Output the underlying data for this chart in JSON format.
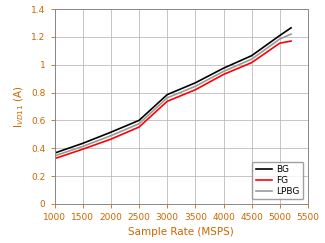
{
  "title": "",
  "xlabel": "Sample Rate (MSPS)",
  "ylabel": "I$_{VD11}$ (A)",
  "xlim": [
    1000,
    5500
  ],
  "ylim": [
    0,
    1.4
  ],
  "xticks": [
    1000,
    1500,
    2000,
    2500,
    3000,
    3500,
    4000,
    4500,
    5000,
    5500
  ],
  "yticks": [
    0,
    0.2,
    0.4,
    0.6,
    0.8,
    1.0,
    1.2,
    1.4
  ],
  "lines": {
    "BG": {
      "x": [
        1000,
        1500,
        2000,
        2500,
        3000,
        3500,
        4000,
        4500,
        5000,
        5200
      ],
      "y": [
        0.365,
        0.435,
        0.515,
        0.6,
        0.785,
        0.87,
        0.975,
        1.065,
        1.21,
        1.265
      ],
      "color": "#000000",
      "linewidth": 1.2
    },
    "FG": {
      "x": [
        1000,
        1500,
        2000,
        2500,
        3000,
        3500,
        4000,
        4500,
        5000,
        5200
      ],
      "y": [
        0.325,
        0.393,
        0.465,
        0.552,
        0.737,
        0.82,
        0.93,
        1.015,
        1.155,
        1.17
      ],
      "color": "#ff0000",
      "linewidth": 1.2
    },
    "LPBG": {
      "x": [
        1000,
        1500,
        2000,
        2500,
        3000,
        3500,
        4000,
        4500,
        5000,
        5200
      ],
      "y": [
        0.345,
        0.413,
        0.49,
        0.576,
        0.762,
        0.845,
        0.952,
        1.04,
        1.185,
        1.22
      ],
      "color": "#999999",
      "linewidth": 1.2
    }
  },
  "legend_loc": "lower right",
  "grid": true,
  "background_color": "#ffffff",
  "tick_color": "#cc6600",
  "label_color": "#cc6600",
  "spine_color": "#888888",
  "grid_color": "#bbbbbb",
  "tick_fontsize": 6.5,
  "label_fontsize": 7.5,
  "legend_fontsize": 6.5
}
